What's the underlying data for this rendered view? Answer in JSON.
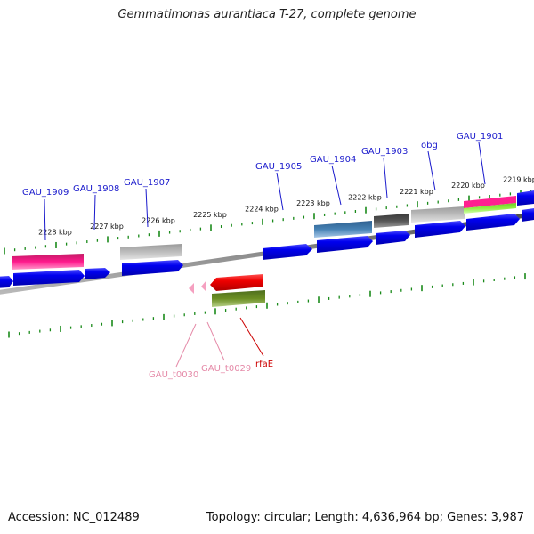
{
  "title": "Gemmatimonas aurantiaca T-27, complete genome",
  "footer": {
    "accession": "Accession: NC_012489",
    "stats": "Topology: circular; Length: 4,636,964 bp; Genes: 3,987"
  },
  "colors": {
    "backbone": "#7a7a7a",
    "tick": "#1a8a1a",
    "cds": "#0000ee",
    "label_blue": "#1a1acc",
    "label_pink": "#e58aa8",
    "label_red": "#cc0000"
  },
  "kbp_labels": [
    "2228 kbp",
    "2227 kbp",
    "2226 kbp",
    "2225 kbp",
    "2224 kbp",
    "2223 kbp",
    "2222 kbp",
    "2221 kbp",
    "2220 kbp",
    "2219 kbp"
  ],
  "gene_labels": [
    {
      "text": "GAU_1909",
      "color": "blue"
    },
    {
      "text": "GAU_1908",
      "color": "blue"
    },
    {
      "text": "GAU_1907",
      "color": "blue"
    },
    {
      "text": "GAU_1905",
      "color": "blue"
    },
    {
      "text": "GAU_1904",
      "color": "blue"
    },
    {
      "text": "GAU_1903",
      "color": "blue"
    },
    {
      "text": "obg",
      "color": "blue"
    },
    {
      "text": "GAU_1901",
      "color": "blue"
    },
    {
      "text": "GAU_t0030",
      "color": "pink"
    },
    {
      "text": "GAU_t0029",
      "color": "pink"
    },
    {
      "text": "rfaE",
      "color": "red"
    }
  ]
}
